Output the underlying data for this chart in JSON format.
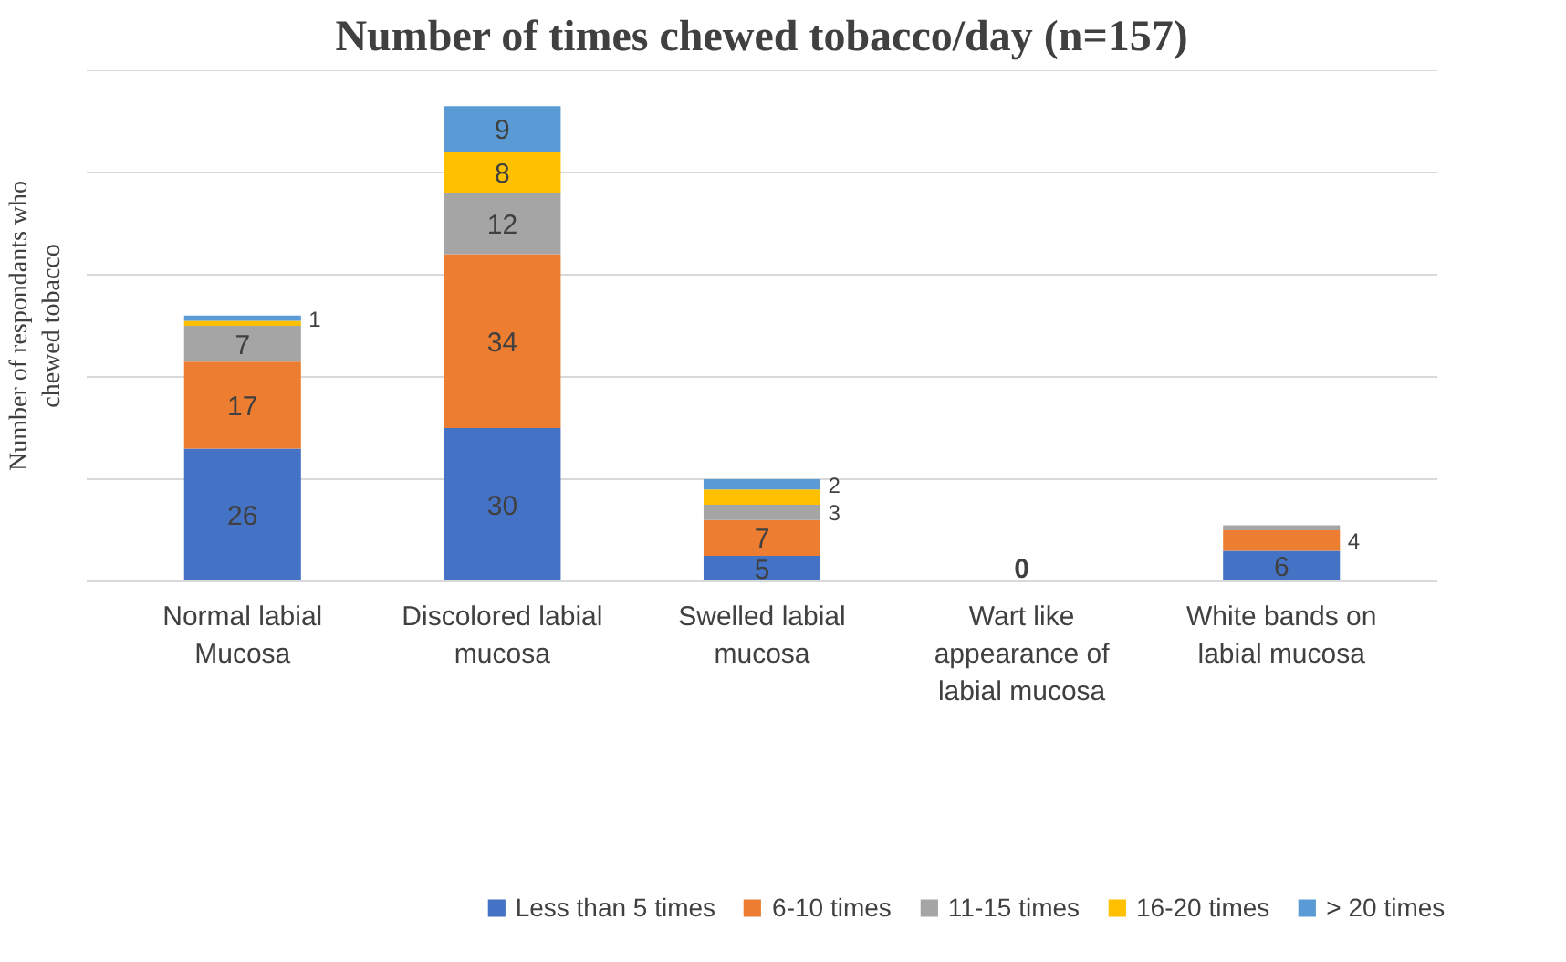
{
  "chart_data": {
    "type": "bar",
    "title": "Number of times chewed tobacco/day (n=157)",
    "ylabel": "Number of respondants who chewed tobacco",
    "categories": [
      "Normal labial Mucosa",
      "Discolored labial mucosa",
      "Swelled labial mucosa",
      "Wart like appearance of labial mucosa",
      "White bands on labial mucosa"
    ],
    "stacked": true,
    "legend": "bottom",
    "grid": "y",
    "tick_labels": "x",
    "ylim": [
      0,
      100
    ],
    "yticks": [
      {
        "value": 0,
        "label": null
      },
      {
        "value": 20,
        "label": null
      },
      {
        "value": 40,
        "label": null
      },
      {
        "value": 60,
        "label": null
      },
      {
        "value": 80,
        "label": null
      },
      {
        "value": 100,
        "label": null
      }
    ],
    "series": [
      {
        "name": "Less than 5 times",
        "color": "#4472c4",
        "values": [
          26,
          30,
          5,
          0,
          6
        ],
        "value_labels": [
          "26",
          "30",
          "5",
          "0",
          "6"
        ]
      },
      {
        "name": "6-10 times",
        "color": "#ed7d31",
        "values": [
          17,
          34,
          7,
          0,
          4
        ],
        "value_labels": [
          "17",
          "34",
          "7",
          null,
          "4"
        ]
      },
      {
        "name": "11-15 times",
        "color": "#a5a5a5",
        "values": [
          7,
          12,
          3,
          0,
          1
        ],
        "value_labels": [
          "7",
          "12",
          "3",
          null,
          null
        ]
      },
      {
        "name": "16-20 times",
        "color": "#ffc000",
        "values": [
          1,
          8,
          3,
          0,
          0
        ],
        "value_labels": [
          null,
          "8",
          null,
          null,
          null
        ]
      },
      {
        "name": "> 20 times",
        "color": "#5b9bd5",
        "values": [
          1,
          9,
          2,
          0,
          0
        ],
        "value_labels": [
          "1",
          "9",
          "2",
          null,
          null
        ]
      }
    ]
  }
}
